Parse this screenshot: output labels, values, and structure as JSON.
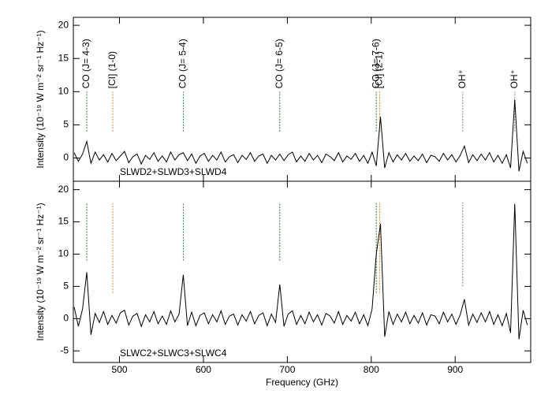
{
  "chart_data": [
    {
      "type": "line",
      "annotation": "SLWD2+SLWD3+SLWD4",
      "ylabel": "Intensity (10⁻¹⁹ W m⁻² sr⁻¹ Hz⁻¹)",
      "xlim": [
        445,
        990
      ],
      "ylim": [
        -3.5,
        21.2
      ],
      "xticks": [
        500,
        600,
        700,
        800,
        900
      ],
      "yticks": [
        0,
        5,
        10,
        15,
        20
      ],
      "color": "#000000",
      "x": [
        446,
        451,
        456,
        461,
        466,
        471,
        476,
        481,
        486,
        491,
        496,
        501,
        506,
        511,
        516,
        521,
        526,
        531,
        536,
        541,
        546,
        551,
        556,
        561,
        566,
        571,
        576,
        581,
        586,
        591,
        596,
        601,
        606,
        611,
        616,
        621,
        626,
        631,
        636,
        641,
        646,
        651,
        656,
        661,
        666,
        671,
        676,
        681,
        686,
        691,
        696,
        701,
        706,
        711,
        716,
        721,
        726,
        731,
        736,
        741,
        746,
        751,
        756,
        761,
        766,
        771,
        776,
        781,
        786,
        791,
        796,
        801,
        806,
        811,
        816,
        821,
        826,
        831,
        836,
        841,
        846,
        851,
        856,
        861,
        866,
        871,
        876,
        881,
        886,
        891,
        896,
        901,
        906,
        911,
        916,
        921,
        926,
        931,
        936,
        941,
        946,
        951,
        956,
        961,
        966,
        971,
        976,
        981,
        986
      ],
      "values": [
        0.8,
        -0.5,
        0.6,
        2.5,
        -0.8,
        0.9,
        -0.3,
        0.5,
        -0.6,
        0.7,
        -0.4,
        0.3,
        1.0,
        -0.7,
        0.2,
        0.6,
        -0.9,
        0.4,
        -0.2,
        0.8,
        -0.5,
        0.3,
        -0.6,
        0.9,
        -0.3,
        0.5,
        0.8,
        -0.4,
        0.6,
        -0.8,
        0.3,
        0.7,
        -0.5,
        0.4,
        -0.3,
        0.9,
        -0.6,
        0.2,
        0.5,
        -0.7,
        0.4,
        -0.2,
        0.8,
        -0.5,
        0.3,
        0.6,
        -0.8,
        0.4,
        -0.3,
        0.6,
        -0.4,
        0.5,
        0.9,
        -0.6,
        0.3,
        -0.5,
        0.7,
        -0.3,
        0.4,
        -0.7,
        0.6,
        0.2,
        -0.4,
        0.8,
        -0.6,
        0.3,
        -0.2,
        0.7,
        -0.5,
        0.4,
        -0.8,
        0.9,
        -1.2,
        6.2,
        -1.5,
        0.8,
        -0.6,
        0.5,
        -0.3,
        0.7,
        -0.5,
        0.3,
        -0.4,
        0.6,
        -0.7,
        0.4,
        0.2,
        -0.5,
        0.7,
        -0.3,
        0.5,
        -0.6,
        0.4,
        1.8,
        -0.7,
        0.5,
        -0.4,
        0.6,
        -0.3,
        0.8,
        -0.6,
        0.4,
        -0.8,
        0.5,
        -1.5,
        8.8,
        -2.0,
        1.0,
        -0.8
      ],
      "markers": [
        {
          "x": 461,
          "from": 4,
          "to": 10,
          "color": "#2a7d2a",
          "label": "CO (J= 4-3)"
        },
        {
          "x": 492,
          "from": 4,
          "to": 10,
          "color": "#f07f2c",
          "label": "[CI] (1-0)"
        },
        {
          "x": 576,
          "from": 4,
          "to": 10,
          "color": "#2a7d2a",
          "label": "CO (J= 5-4)"
        },
        {
          "x": 691,
          "from": 4,
          "to": 10,
          "color": "#2a7d2a",
          "label": "CO (J= 6-5)"
        },
        {
          "x": 806,
          "from": 4,
          "to": 10,
          "color": "#2a7d2a",
          "label": "CO (J= 7-6)"
        },
        {
          "x": 810,
          "from": 4,
          "to": 10,
          "color": "#f07f2c",
          "label": "[CI] (2-1)"
        },
        {
          "x": 909,
          "from": 4,
          "to": 10,
          "color": "#888888",
          "label": "OH⁺"
        },
        {
          "x": 971,
          "from": 4,
          "to": 10,
          "color": "#888888",
          "label": "OH⁺"
        }
      ]
    },
    {
      "type": "line",
      "annotation": "SLWC2+SLWC3+SLWC4",
      "ylabel": "Intensity (10⁻¹⁹ W m⁻² sr⁻¹ Hz⁻¹)",
      "xlabel": "Frequency (GHz)",
      "xlim": [
        445,
        990
      ],
      "ylim": [
        -6.8,
        21.3
      ],
      "xticks": [
        500,
        600,
        700,
        800,
        900
      ],
      "yticks": [
        -5,
        0,
        5,
        10,
        15,
        20
      ],
      "color": "#000000",
      "x": [
        446,
        451,
        456,
        461,
        466,
        471,
        476,
        481,
        486,
        491,
        496,
        501,
        506,
        511,
        516,
        521,
        526,
        531,
        536,
        541,
        546,
        551,
        556,
        561,
        566,
        571,
        576,
        581,
        586,
        591,
        596,
        601,
        606,
        611,
        616,
        621,
        626,
        631,
        636,
        641,
        646,
        651,
        656,
        661,
        666,
        671,
        676,
        681,
        686,
        691,
        696,
        701,
        706,
        711,
        716,
        721,
        726,
        731,
        736,
        741,
        746,
        751,
        756,
        761,
        766,
        771,
        776,
        781,
        786,
        791,
        796,
        801,
        806,
        811,
        816,
        821,
        826,
        831,
        836,
        841,
        846,
        851,
        856,
        861,
        866,
        871,
        876,
        881,
        886,
        891,
        896,
        901,
        906,
        911,
        916,
        921,
        926,
        931,
        936,
        941,
        946,
        951,
        956,
        961,
        966,
        971,
        976,
        981,
        986
      ],
      "values": [
        1.8,
        -1.2,
        1.5,
        7.2,
        -2.5,
        0.8,
        -0.6,
        1.1,
        -0.9,
        0.5,
        -0.7,
        0.9,
        1.3,
        -1.0,
        0.4,
        0.8,
        -1.2,
        0.6,
        -0.5,
        1.1,
        -0.8,
        0.4,
        -0.9,
        1.2,
        -0.5,
        0.7,
        6.8,
        -1.1,
        1.0,
        -1.1,
        0.5,
        0.9,
        -0.8,
        0.6,
        -0.5,
        1.2,
        -0.9,
        0.4,
        0.7,
        -1.0,
        0.6,
        -0.4,
        1.1,
        -0.8,
        0.5,
        0.9,
        -1.1,
        0.7,
        -0.6,
        5.3,
        -1.2,
        0.7,
        1.2,
        -0.9,
        0.5,
        -0.8,
        1.0,
        -0.5,
        0.6,
        -1.0,
        0.8,
        0.4,
        -0.7,
        1.1,
        -0.9,
        0.5,
        -0.4,
        1.0,
        -0.8,
        0.6,
        -1.1,
        1.5,
        10.0,
        14.7,
        -2.8,
        1.1,
        -0.9,
        0.7,
        -0.5,
        1.0,
        -0.8,
        0.5,
        -0.7,
        0.9,
        -1.0,
        0.6,
        0.4,
        -0.8,
        1.0,
        -0.5,
        0.7,
        -0.9,
        0.6,
        3.0,
        -1.0,
        0.7,
        -0.6,
        0.9,
        -0.5,
        1.1,
        -0.9,
        0.6,
        -1.1,
        0.8,
        -2.2,
        17.8,
        -3.2,
        1.3,
        -1.0
      ],
      "markers": [
        {
          "x": 461,
          "from": 9,
          "to": 18,
          "color": "#2a7d2a"
        },
        {
          "x": 492,
          "from": 4,
          "to": 18,
          "color": "#f07f2c"
        },
        {
          "x": 576,
          "from": 9,
          "to": 18,
          "color": "#2a7d2a"
        },
        {
          "x": 691,
          "from": 9,
          "to": 18,
          "color": "#2a7d2a"
        },
        {
          "x": 806,
          "from": 4,
          "to": 18,
          "color": "#2a7d2a"
        },
        {
          "x": 810,
          "from": 4,
          "to": 18,
          "color": "#f07f2c"
        },
        {
          "x": 909,
          "from": 5,
          "to": 18,
          "color": "#888888"
        }
      ]
    }
  ]
}
